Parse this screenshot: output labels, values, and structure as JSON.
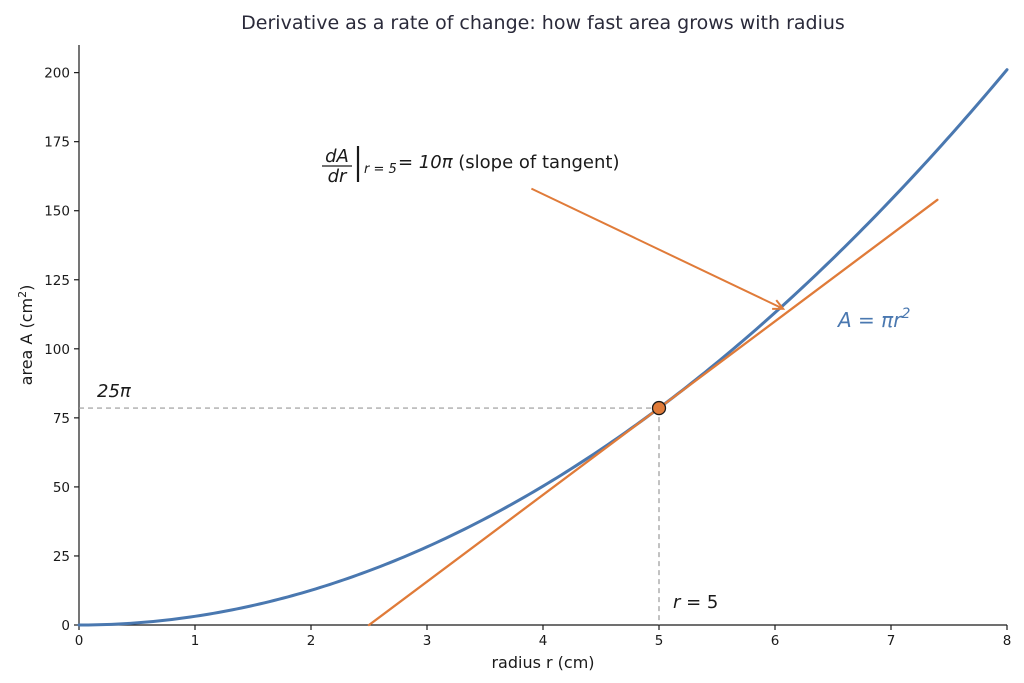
{
  "chart_data": {
    "type": "line",
    "title": "Derivative as a rate of change: how fast area grows with radius",
    "xlabel": "radius  r  (cm)",
    "ylabel_text": "area  A  (cm",
    "ylabel_sup": "2",
    "ylabel_close": ")",
    "xlim": [
      0,
      8
    ],
    "ylim": [
      0,
      210
    ],
    "xticks": [
      0,
      1,
      2,
      3,
      4,
      5,
      6,
      7,
      8
    ],
    "yticks": [
      0,
      25,
      50,
      75,
      100,
      125,
      150,
      175,
      200
    ],
    "grid": false,
    "series": [
      {
        "name": "A = πr²",
        "formula": "pi*r^2",
        "color": "#4a78b0",
        "x": [
          0,
          0.5,
          1,
          1.5,
          2,
          2.5,
          3,
          3.5,
          4,
          4.5,
          5,
          5.5,
          6,
          6.5,
          7,
          7.5,
          8
        ],
        "y": [
          0,
          0.79,
          3.14,
          7.07,
          12.57,
          19.63,
          28.27,
          38.48,
          50.27,
          63.62,
          78.54,
          95.03,
          113.1,
          132.73,
          153.94,
          176.71,
          201.06
        ]
      },
      {
        "name": "tangent at r = 5",
        "color": "#e07b39",
        "x": [
          2.5,
          7.4
        ],
        "y": [
          0,
          153.94
        ]
      }
    ],
    "highlight_point": {
      "x": 5,
      "y": 78.54,
      "color": "#e07b39"
    },
    "annotations": {
      "curve_label": {
        "lhs": "A",
        "eq": " = πr",
        "sup": "2",
        "color": "#4a78b0"
      },
      "y_marker_label": "25π",
      "x_marker_label_var": "r",
      "x_marker_label_rest": " = 5",
      "derivative_num": "dA",
      "derivative_den": "dr",
      "derivative_sub": "r = 5",
      "derivative_value": " = 10π",
      "derivative_note": "  (slope of tangent)",
      "arrow": {
        "from": [
          3.9,
          158
        ],
        "to": [
          6.07,
          114.5
        ]
      }
    }
  }
}
